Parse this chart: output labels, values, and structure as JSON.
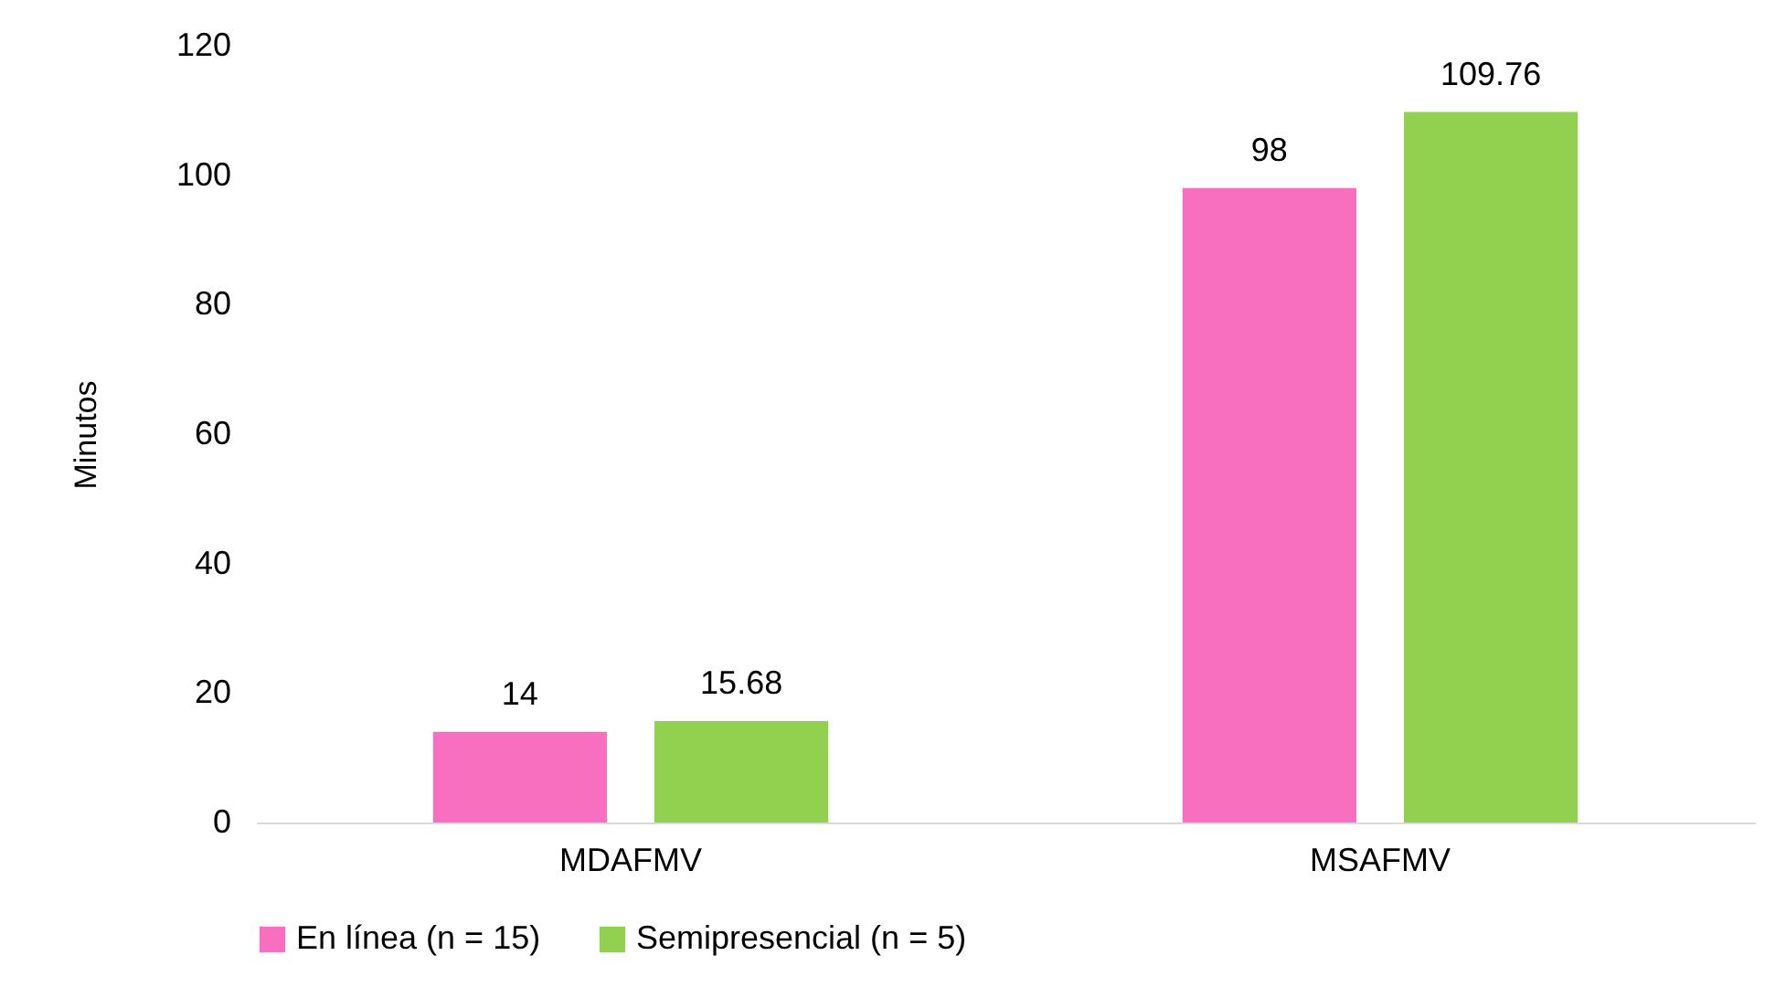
{
  "chart_data": {
    "type": "bar",
    "ylabel": "Minutos",
    "categories": [
      "MDAFMV",
      "MSAFMV"
    ],
    "series": [
      {
        "name": "En línea (n = 15)",
        "color": "#f76fbe",
        "values": [
          14,
          98
        ]
      },
      {
        "name": "Semipresencial (n = 5)",
        "color": "#92d050",
        "values": [
          15.68,
          109.76
        ]
      }
    ],
    "ylim": [
      0,
      120
    ],
    "yticks": [
      0,
      20,
      40,
      60,
      80,
      100,
      120
    ],
    "grid": false,
    "legend": "bottom",
    "data_labels": true
  }
}
